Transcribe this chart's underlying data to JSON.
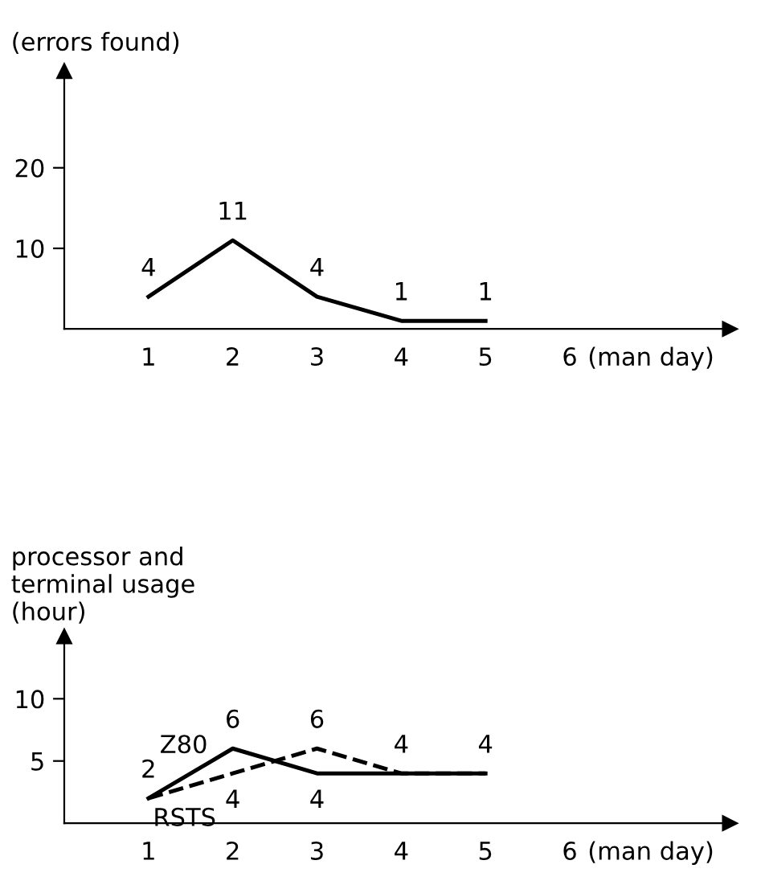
{
  "chart_data": [
    {
      "type": "line",
      "ylabel": "(errors found)",
      "xlabel": "(man day)",
      "x": [
        1,
        2,
        3,
        4,
        5
      ],
      "series": [
        {
          "color": "#000000",
          "line_style": "solid",
          "values": [
            4,
            11,
            4,
            1,
            1
          ],
          "value_labels": [
            "4",
            "11",
            "4",
            "1",
            "1"
          ]
        }
      ],
      "xlim": [
        0,
        7.9
      ],
      "xticks": [
        1,
        2,
        3,
        4,
        5,
        6
      ],
      "ylim": [
        0,
        32
      ],
      "yticks": [
        10,
        20
      ],
      "grid": false,
      "legend": false,
      "marker": "none"
    },
    {
      "type": "line",
      "ylabel": "processor and\nterminal usage\n(hour)",
      "xlabel": "(man day)",
      "x": [
        1,
        2,
        3,
        4,
        5
      ],
      "series": [
        {
          "name": "Z80",
          "color": "#000000",
          "line_style": "solid",
          "values": [
            2,
            6,
            4,
            4,
            4
          ],
          "value_labels": [
            "2",
            "6",
            "4",
            "4",
            "4"
          ]
        },
        {
          "name": "RSTS",
          "color": "#000000",
          "line_style": "dashed",
          "values": [
            2,
            4,
            6,
            4,
            4
          ],
          "value_labels": [
            null,
            "4",
            "6",
            null,
            null
          ]
        }
      ],
      "xlim": [
        0,
        7.9
      ],
      "xticks": [
        1,
        2,
        3,
        4,
        5,
        6
      ],
      "ylim": [
        0,
        15
      ],
      "yticks": [
        5,
        10
      ],
      "grid": false,
      "legend": false,
      "marker": "none"
    }
  ]
}
